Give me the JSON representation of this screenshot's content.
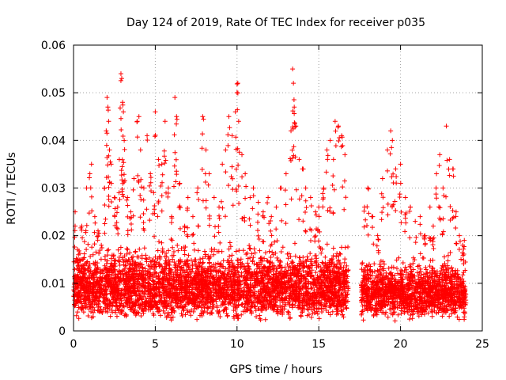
{
  "chart_data": {
    "type": "scatter",
    "title": "Day 124 of 2019, Rate Of TEC Index for receiver p035",
    "xlabel": "GPS time / hours",
    "ylabel": "ROTI / TECUs",
    "xlim": [
      0,
      25
    ],
    "ylim": [
      0,
      0.06
    ],
    "xticks": [
      0,
      5,
      10,
      15,
      20,
      25
    ],
    "yticks": [
      0,
      0.01,
      0.02,
      0.03,
      0.04,
      0.05,
      0.06
    ],
    "xtick_labels": [
      "0",
      "5",
      "10",
      "15",
      "20",
      "25"
    ],
    "ytick_labels": [
      "0",
      "0.01",
      "0.02",
      "0.03",
      "0.04",
      "0.05",
      "0.06"
    ],
    "grid": true,
    "marker": "+",
    "color": "#ff0000",
    "data_gap_hours": [
      16.8,
      17.6
    ],
    "series": [
      {
        "name": "ROTI",
        "points": [
          [
            0.1,
            0.025
          ],
          [
            0.3,
            0.016
          ],
          [
            0.5,
            0.022
          ],
          [
            0.6,
            0.012
          ],
          [
            0.8,
            0.03
          ],
          [
            1.0,
            0.033
          ],
          [
            1.1,
            0.035
          ],
          [
            1.3,
            0.024
          ],
          [
            1.5,
            0.021
          ],
          [
            1.7,
            0.018
          ],
          [
            1.9,
            0.03
          ],
          [
            2.0,
            0.042
          ],
          [
            2.05,
            0.049
          ],
          [
            2.1,
            0.047
          ],
          [
            2.15,
            0.044
          ],
          [
            2.2,
            0.038
          ],
          [
            2.3,
            0.035
          ],
          [
            2.5,
            0.028
          ],
          [
            2.7,
            0.026
          ],
          [
            2.8,
            0.036
          ],
          [
            2.9,
            0.054
          ],
          [
            2.95,
            0.053
          ],
          [
            3.0,
            0.048
          ],
          [
            3.05,
            0.046
          ],
          [
            3.1,
            0.04
          ],
          [
            3.3,
            0.028
          ],
          [
            3.5,
            0.025
          ],
          [
            3.7,
            0.032
          ],
          [
            3.9,
            0.044
          ],
          [
            4.0,
            0.045
          ],
          [
            4.1,
            0.038
          ],
          [
            4.3,
            0.03
          ],
          [
            4.5,
            0.041
          ],
          [
            4.7,
            0.033
          ],
          [
            4.9,
            0.029
          ],
          [
            5.0,
            0.046
          ],
          [
            5.2,
            0.036
          ],
          [
            5.4,
            0.035
          ],
          [
            5.6,
            0.044
          ],
          [
            5.8,
            0.03
          ],
          [
            6.0,
            0.024
          ],
          [
            6.2,
            0.049
          ],
          [
            6.3,
            0.045
          ],
          [
            6.5,
            0.031
          ],
          [
            6.8,
            0.022
          ],
          [
            7.0,
            0.028
          ],
          [
            7.3,
            0.024
          ],
          [
            7.6,
            0.03
          ],
          [
            7.9,
            0.045
          ],
          [
            8.1,
            0.038
          ],
          [
            8.3,
            0.033
          ],
          [
            8.6,
            0.028
          ],
          [
            8.9,
            0.026
          ],
          [
            9.1,
            0.035
          ],
          [
            9.3,
            0.038
          ],
          [
            9.5,
            0.045
          ],
          [
            9.7,
            0.041
          ],
          [
            9.9,
            0.046
          ],
          [
            10.0,
            0.05
          ],
          [
            10.05,
            0.052
          ],
          [
            10.1,
            0.044
          ],
          [
            10.3,
            0.037
          ],
          [
            10.5,
            0.033
          ],
          [
            10.8,
            0.028
          ],
          [
            11.0,
            0.03
          ],
          [
            11.3,
            0.027
          ],
          [
            11.6,
            0.025
          ],
          [
            11.9,
            0.028
          ],
          [
            12.1,
            0.024
          ],
          [
            12.4,
            0.026
          ],
          [
            12.7,
            0.03
          ],
          [
            13.0,
            0.033
          ],
          [
            13.3,
            0.042
          ],
          [
            13.4,
            0.055
          ],
          [
            13.45,
            0.052
          ],
          [
            13.5,
            0.047
          ],
          [
            13.6,
            0.043
          ],
          [
            13.8,
            0.036
          ],
          [
            14.0,
            0.034
          ],
          [
            14.2,
            0.03
          ],
          [
            14.5,
            0.028
          ],
          [
            14.8,
            0.025
          ],
          [
            15.0,
            0.026
          ],
          [
            15.3,
            0.03
          ],
          [
            15.5,
            0.038
          ],
          [
            15.7,
            0.04
          ],
          [
            15.9,
            0.036
          ],
          [
            16.0,
            0.044
          ],
          [
            16.2,
            0.043
          ],
          [
            16.4,
            0.041
          ],
          [
            16.6,
            0.037
          ],
          [
            17.8,
            0.026
          ],
          [
            18.0,
            0.03
          ],
          [
            18.3,
            0.024
          ],
          [
            18.6,
            0.02
          ],
          [
            18.9,
            0.032
          ],
          [
            19.2,
            0.038
          ],
          [
            19.4,
            0.042
          ],
          [
            19.5,
            0.04
          ],
          [
            19.7,
            0.034
          ],
          [
            20.0,
            0.035
          ],
          [
            20.3,
            0.028
          ],
          [
            20.6,
            0.026
          ],
          [
            20.9,
            0.023
          ],
          [
            21.2,
            0.024
          ],
          [
            21.5,
            0.02
          ],
          [
            21.8,
            0.026
          ],
          [
            22.0,
            0.022
          ],
          [
            22.2,
            0.033
          ],
          [
            22.4,
            0.037
          ],
          [
            22.6,
            0.03
          ],
          [
            22.8,
            0.043
          ],
          [
            23.0,
            0.036
          ],
          [
            23.2,
            0.034
          ],
          [
            23.4,
            0.025
          ],
          [
            23.6,
            0.02
          ],
          [
            23.8,
            0.018
          ],
          [
            23.9,
            0.019
          ]
        ],
        "dense_band": [
          {
            "x_range": [
              0.0,
              16.8
            ],
            "y_range": [
              0.002,
              0.02
            ],
            "note": "dense cluster of points, most between 0.005 and 0.014"
          },
          {
            "x_range": [
              17.6,
              24.0
            ],
            "y_range": [
              0.002,
              0.017
            ],
            "note": "dense cluster of points, most between 0.004 and 0.012"
          }
        ]
      }
    ]
  }
}
